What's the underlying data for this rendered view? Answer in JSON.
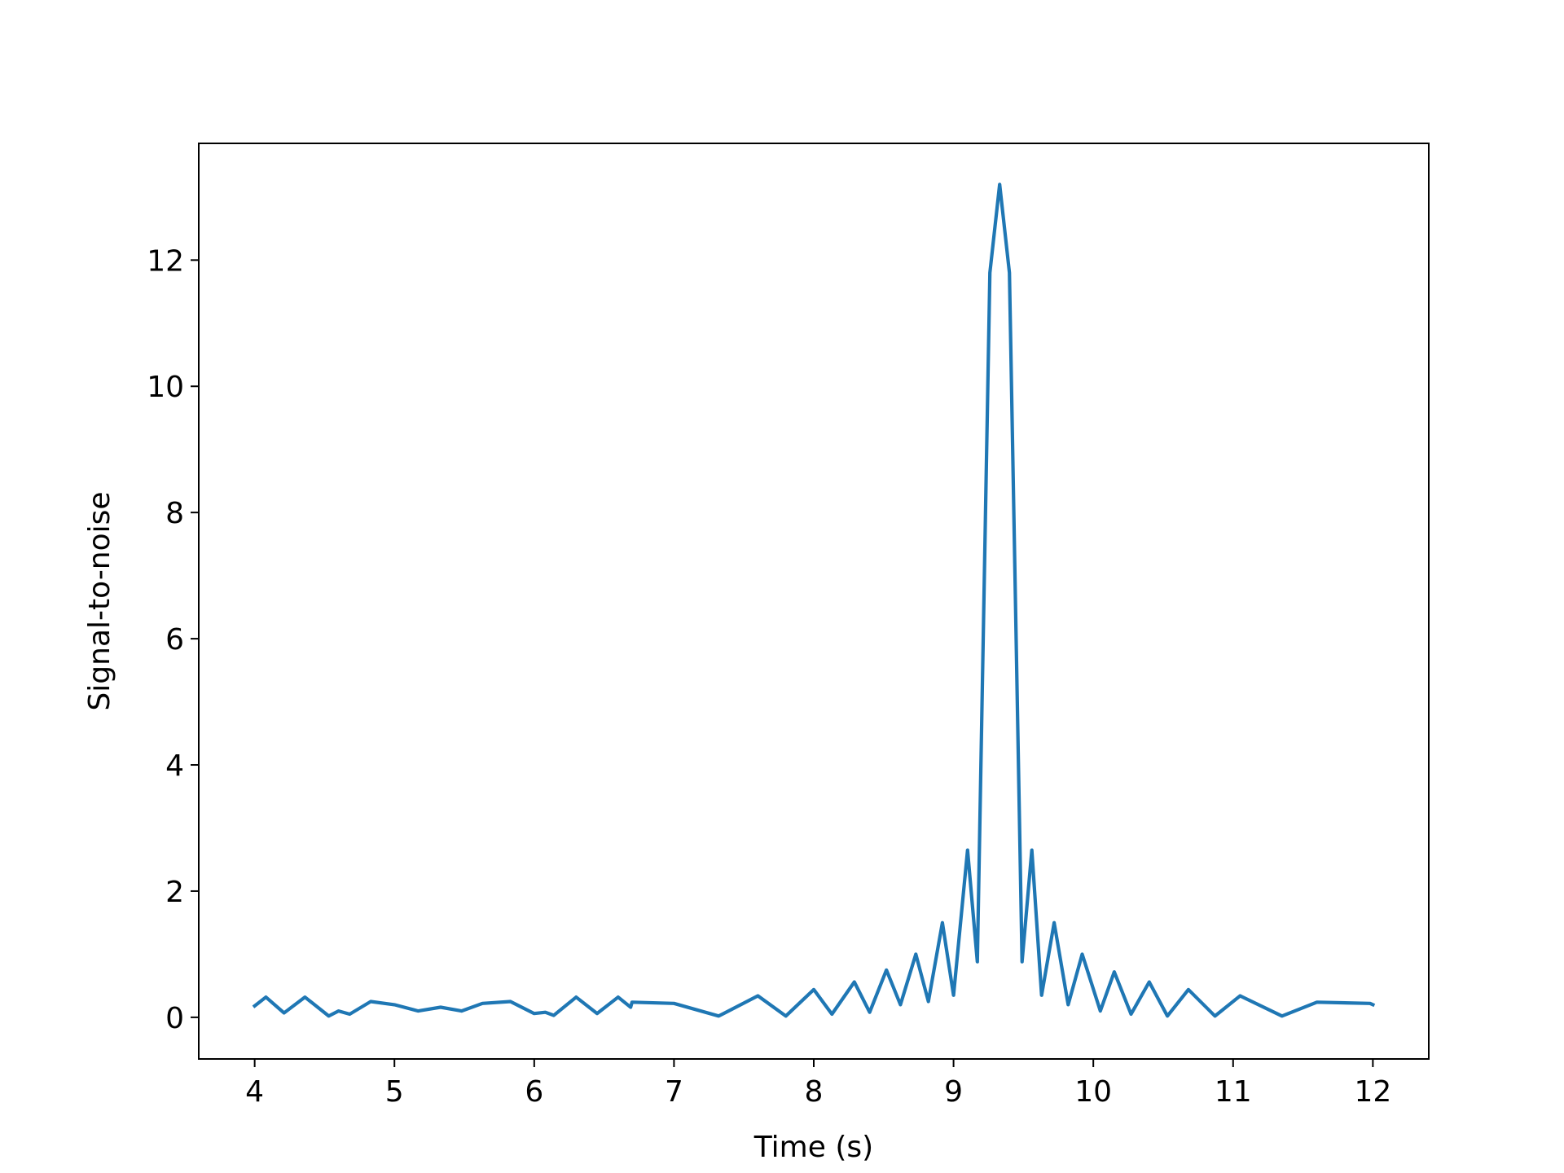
{
  "chart_data": {
    "type": "line",
    "title": "",
    "xlabel": "Time (s)",
    "ylabel": "Signal-to-noise",
    "xlim": [
      3.6,
      12.4
    ],
    "ylim": [
      -0.66,
      13.85
    ],
    "xticks": [
      4,
      5,
      6,
      7,
      8,
      9,
      10,
      11,
      12
    ],
    "yticks": [
      0,
      2,
      4,
      6,
      8,
      10,
      12
    ],
    "grid": false,
    "legend": "none",
    "line_color": "#1f77b4",
    "series": [
      {
        "x": [
          4.0,
          4.08,
          4.21,
          4.36,
          4.53,
          4.6,
          4.68,
          4.83,
          5.0,
          5.17,
          5.33,
          5.48,
          5.63,
          5.83,
          6.0,
          6.08,
          6.14,
          6.3,
          6.45,
          6.6,
          6.69,
          6.7,
          7.0,
          7.32,
          7.6,
          7.8,
          8.0,
          8.13,
          8.29,
          8.4,
          8.52,
          8.62,
          8.73,
          8.82,
          8.92,
          9.0,
          9.1,
          9.17,
          9.26,
          9.33,
          9.4,
          9.49,
          9.56,
          9.63,
          9.72,
          9.82,
          9.92,
          10.05,
          10.15,
          10.27,
          10.4,
          10.53,
          10.68,
          10.87,
          11.05,
          11.35,
          11.6,
          11.98,
          12.0
        ],
        "y": [
          0.18,
          0.32,
          0.07,
          0.32,
          0.02,
          0.1,
          0.05,
          0.25,
          0.2,
          0.1,
          0.16,
          0.1,
          0.22,
          0.25,
          0.06,
          0.08,
          0.03,
          0.32,
          0.06,
          0.32,
          0.16,
          0.24,
          0.22,
          0.02,
          0.34,
          0.02,
          0.44,
          0.05,
          0.56,
          0.08,
          0.75,
          0.2,
          1.0,
          0.25,
          1.5,
          0.35,
          2.65,
          0.88,
          11.8,
          13.2,
          11.8,
          0.88,
          2.65,
          0.35,
          1.5,
          0.2,
          1.0,
          0.1,
          0.72,
          0.05,
          0.56,
          0.02,
          0.44,
          0.02,
          0.34,
          0.02,
          0.24,
          0.22,
          0.2
        ]
      }
    ]
  }
}
